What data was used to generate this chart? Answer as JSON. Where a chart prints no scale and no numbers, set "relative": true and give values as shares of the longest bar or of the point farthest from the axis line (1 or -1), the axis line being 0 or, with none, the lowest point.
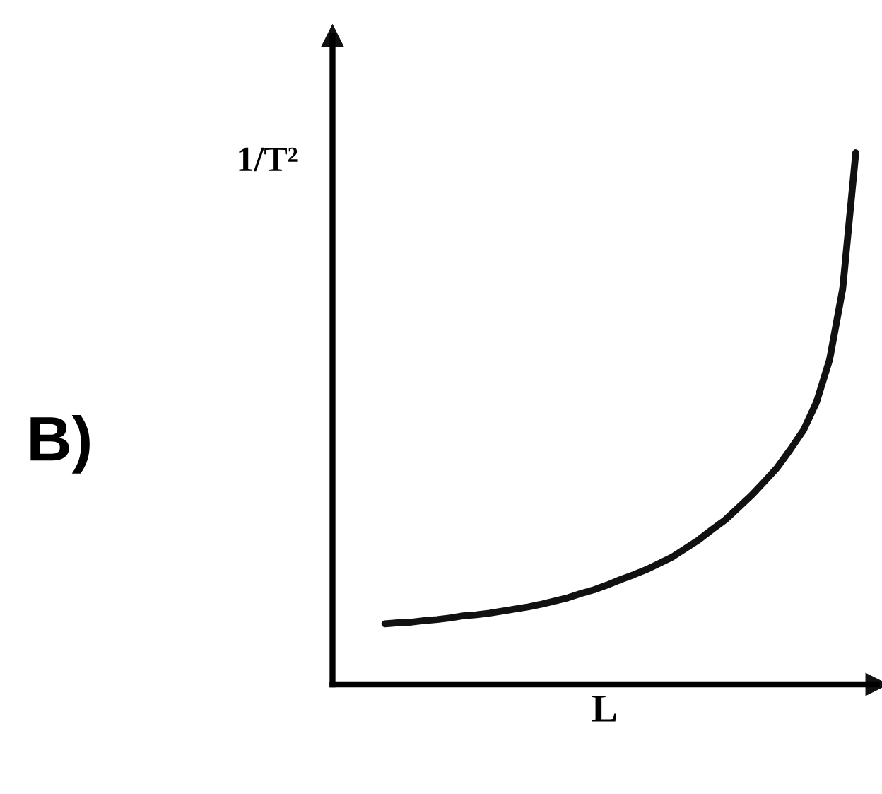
{
  "chart_data": {
    "type": "line",
    "relative": true,
    "xlabel": "L",
    "ylabel": "1/T²",
    "annotations": [
      "B)"
    ],
    "categories": [
      null,
      null,
      null,
      null,
      null,
      null,
      null,
      null,
      null,
      null,
      null,
      null,
      null,
      null,
      null,
      null,
      null,
      null,
      null,
      null,
      null,
      null,
      null,
      null,
      null,
      null,
      null,
      null,
      null,
      null,
      null,
      null,
      null,
      null,
      null,
      null,
      null,
      null,
      null,
      null,
      null
    ],
    "series": [
      {
        "color": "#111111",
        "values": [
          null,
          null,
          null,
          null,
          0.114,
          0.116,
          0.117,
          0.12,
          0.122,
          0.125,
          0.129,
          0.131,
          0.134,
          0.138,
          0.142,
          0.146,
          0.151,
          0.157,
          0.163,
          0.171,
          0.178,
          0.187,
          0.197,
          0.206,
          0.216,
          0.228,
          0.24,
          0.256,
          0.272,
          0.291,
          0.309,
          0.332,
          0.355,
          0.381,
          0.408,
          0.442,
          0.478,
          0.531,
          0.611,
          0.744,
          1
        ]
      }
    ],
    "legend": false,
    "marker": "none",
    "line_style": "solid"
  }
}
